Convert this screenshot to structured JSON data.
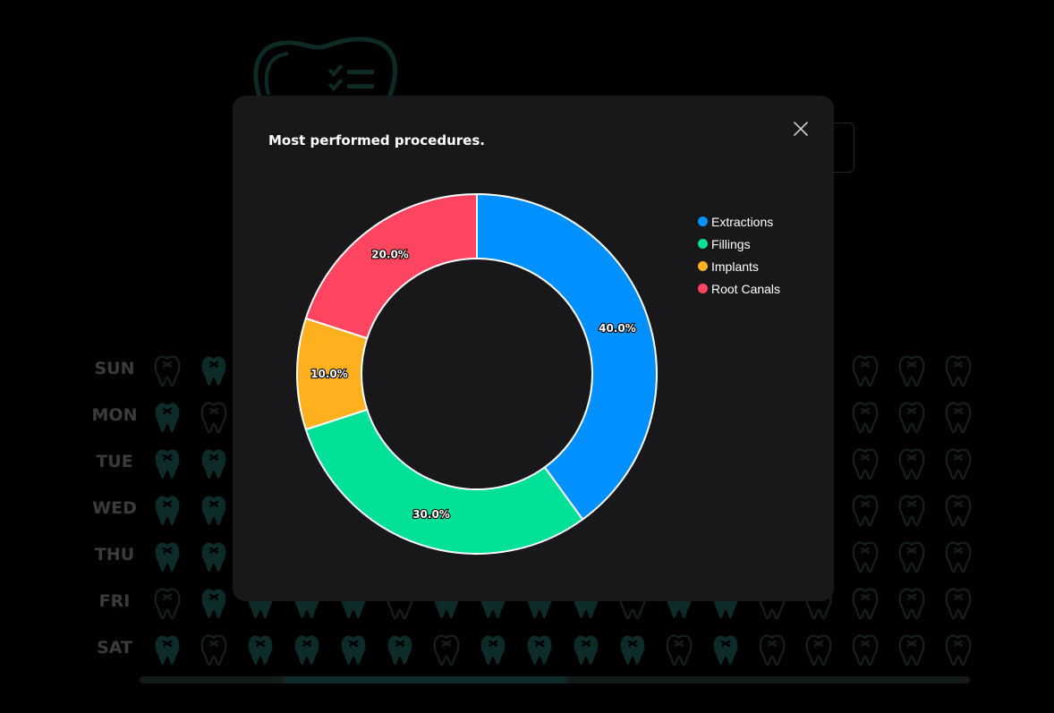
{
  "background": {
    "days": [
      "SUN",
      "MON",
      "TUE",
      "WED",
      "THU",
      "FRI",
      "SAT"
    ]
  },
  "modal": {
    "title": "Most performed procedures.",
    "close_icon": "close-icon"
  },
  "colors": {
    "Extractions": "#0090ff",
    "Fillings": "#00e096",
    "Implants": "#ffb01f",
    "Root Canals": "#ff4560"
  },
  "chart_data": {
    "type": "pie",
    "variant": "doughnut",
    "title": "Most performed procedures.",
    "categories": [
      "Extractions",
      "Fillings",
      "Implants",
      "Root Canals"
    ],
    "values": [
      40,
      30,
      10,
      20
    ],
    "labels": [
      "40.0%",
      "30.0%",
      "10.0%",
      "20.0%"
    ],
    "legend_position": "right"
  }
}
